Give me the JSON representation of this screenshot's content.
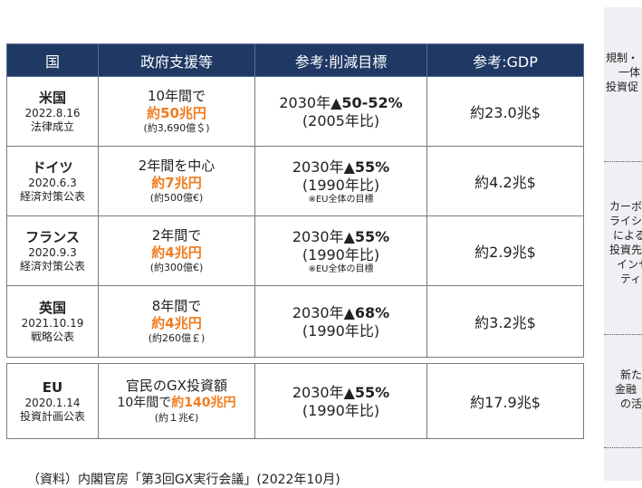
{
  "headers": [
    "国",
    "政府支援等",
    "参考:削減目標",
    "参考:GDP"
  ],
  "rows": [
    {
      "country": "米国",
      "date": "2022.8.16",
      "note": "法律成立",
      "support": {
        "line1": "10年間で",
        "amount": "約50兆円",
        "sub": "(約3,690億＄)"
      },
      "target": {
        "year": "2030年",
        "value": "▲50-52%",
        "base": "(2005年比)",
        "note": ""
      },
      "gdp": "約23.0兆$"
    },
    {
      "country": "ドイツ",
      "date": "2020.6.3",
      "note": "経済対策公表",
      "support": {
        "line1": "2年間を中心",
        "amount": "約7兆円",
        "sub": "(約500億€)"
      },
      "target": {
        "year": "2030年",
        "value": "▲55%",
        "base": "(1990年比)",
        "note": "※EU全体の目標"
      },
      "gdp": "約4.2兆$"
    },
    {
      "country": "フランス",
      "date": "2020.9.3",
      "note": "経済対策公表",
      "support": {
        "line1": "2年間で",
        "amount": "約4兆円",
        "sub": "(約300億€)"
      },
      "target": {
        "year": "2030年",
        "value": "▲55%",
        "base": "(1990年比)",
        "note": "※EU全体の目標"
      },
      "gdp": "約2.9兆$"
    },
    {
      "country": "英国",
      "date": "2021.10.19",
      "note": "戦略公表",
      "support": {
        "line1": "8年間で",
        "amount": "約4兆円",
        "sub": "(約260億￡)"
      },
      "target": {
        "year": "2030年",
        "value": "▲68%",
        "base": "(1990年比)",
        "note": ""
      },
      "gdp": "約3.2兆$"
    }
  ],
  "eu": {
    "country": "EU",
    "date": "2020.1.14",
    "note": "投資計画公表",
    "support": {
      "line1": "官民のGX投資額",
      "prefix": "10年間で",
      "amount": "約140兆円",
      "sub": "(約１兆€)"
    },
    "target": {
      "year": "2030年",
      "value": "▲55%",
      "base": "(1990年比)"
    },
    "gdp": "約17.9兆$"
  },
  "source": "（資料）内閣官房「第3回GX実行会議」(2022年10月)",
  "side_panel": [
    [
      "規制・",
      "一体",
      "投資促"
    ],
    [
      "カーボ",
      "ライシ",
      "による",
      "投資先",
      "インセ",
      "ティブ"
    ],
    [
      "新た",
      "金融",
      "の活"
    ]
  ],
  "colors": {
    "header_bg": "#1f3864",
    "accent": "#f07c1e"
  }
}
